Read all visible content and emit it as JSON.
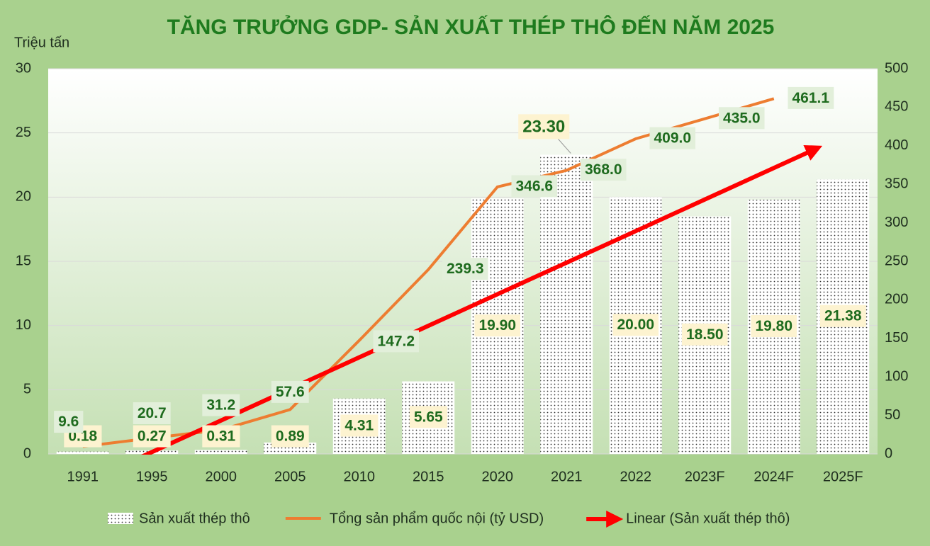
{
  "chart_data": {
    "type": "bar",
    "title": "TĂNG TRƯỞNG GDP- SẢN XUẤT THÉP THÔ ĐẾN NĂM 2025",
    "y_axis_title": "Triệu tấn",
    "categories": [
      "1991",
      "1995",
      "2000",
      "2005",
      "2010",
      "2015",
      "2020",
      "2021",
      "2022",
      "2023F",
      "2024F",
      "2025F"
    ],
    "series": [
      {
        "name": "Sản xuất thép thô",
        "type": "bar",
        "color": "#ffffff",
        "values": [
          0.18,
          0.27,
          0.31,
          0.89,
          4.31,
          5.65,
          19.9,
          23.3,
          20,
          18.5,
          19.8,
          21.38
        ],
        "value_labels": [
          "0.18",
          "0.27",
          "0.31",
          "0.89",
          "4.31",
          "5.65",
          "19.90",
          "23.30",
          "20.00",
          "18.50",
          "19.80",
          "21.38"
        ]
      },
      {
        "name": "Tổng sản phẩm quốc nội (tỷ USD)",
        "type": "line",
        "axis": "y2",
        "color": "#ed7d31",
        "values": [
          9.6,
          20.7,
          31.2,
          57.6,
          147.2,
          239.3,
          346.6,
          368.0,
          409.0,
          435.0,
          461.1,
          null
        ],
        "value_labels": [
          "9.6",
          "20.7",
          "31.2",
          "57.6",
          "147.2",
          "239.3",
          "346.6",
          "368.0",
          "409.0",
          "435.0",
          "461.1",
          null
        ]
      }
    ],
    "trendline": {
      "name": "Linear (Sản xuất thép thô)",
      "type": "linear",
      "color": "#ff0000"
    },
    "ylim": [
      0,
      30
    ],
    "yticks": [
      0,
      5,
      10,
      15,
      20,
      25,
      30
    ],
    "y2lim": [
      0,
      500
    ],
    "y2ticks": [
      0,
      50,
      100,
      150,
      200,
      250,
      300,
      350,
      400,
      450,
      500
    ],
    "grid": true
  }
}
